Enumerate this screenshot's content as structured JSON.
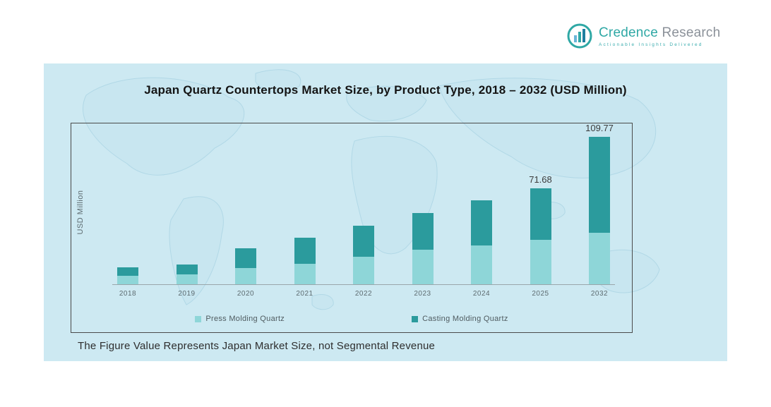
{
  "brand": {
    "name_primary": "Credence",
    "name_secondary": "Research",
    "tagline": "Actionable Insights Delivered",
    "accent_color": "#2fa8a5"
  },
  "chart_data": {
    "type": "bar",
    "stacked": true,
    "title": "Japan Quartz Countertops Market Size, by Product Type, 2018 – 2032 (USD Million)",
    "ylabel": "USD Million",
    "categories": [
      "2018",
      "2019",
      "2020",
      "2021",
      "2022",
      "2023",
      "2024",
      "2025",
      "2032"
    ],
    "series": [
      {
        "name": "Press Molding Quartz",
        "color": "#8ed6d8",
        "values": [
          6.1,
          7.2,
          12.3,
          15.4,
          20.5,
          25.6,
          29.2,
          33.3,
          38.5
        ]
      },
      {
        "name": "Casting Molding Quartz",
        "color": "#2b9b9d",
        "values": [
          6.7,
          7.7,
          14.8,
          19.5,
          23.0,
          27.7,
          33.3,
          38.4,
          71.3
        ]
      }
    ],
    "totals": [
      12.8,
      14.9,
      27.1,
      34.9,
      43.5,
      53.3,
      62.5,
      71.68,
      109.77
    ],
    "data_labels": {
      "2025": "71.68",
      "2032": "109.77"
    },
    "ylim": [
      0,
      120
    ],
    "grid": false,
    "legend_position": "bottom"
  },
  "footnote": "The Figure Value Represents Japan Market Size, not Segmental Revenue",
  "colors": {
    "panel_background": "#cde9f2",
    "map_line": "#a8d3e3",
    "frame_border": "#4a4a4a"
  }
}
